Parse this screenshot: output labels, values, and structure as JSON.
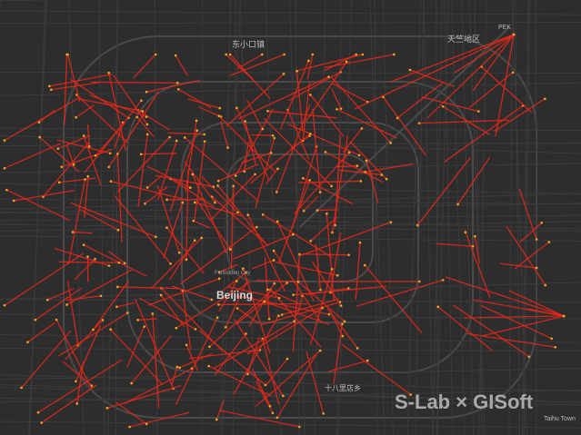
{
  "map": {
    "labels": {
      "dongxiaokou": "东小口镇",
      "tianzhu": "天竺地区",
      "pek": "PEK",
      "forbidden_city": "Forbidden City",
      "beijing": "Beijing",
      "shibalidian": "十八里店乡",
      "taihu": "Taihu Town"
    },
    "watermark": "S-Lab × GISoft",
    "colors": {
      "background": "#2d2d2d",
      "roads": "#4a4a4a",
      "flow": "#e8281a",
      "flow_end": "#f5a623"
    }
  }
}
